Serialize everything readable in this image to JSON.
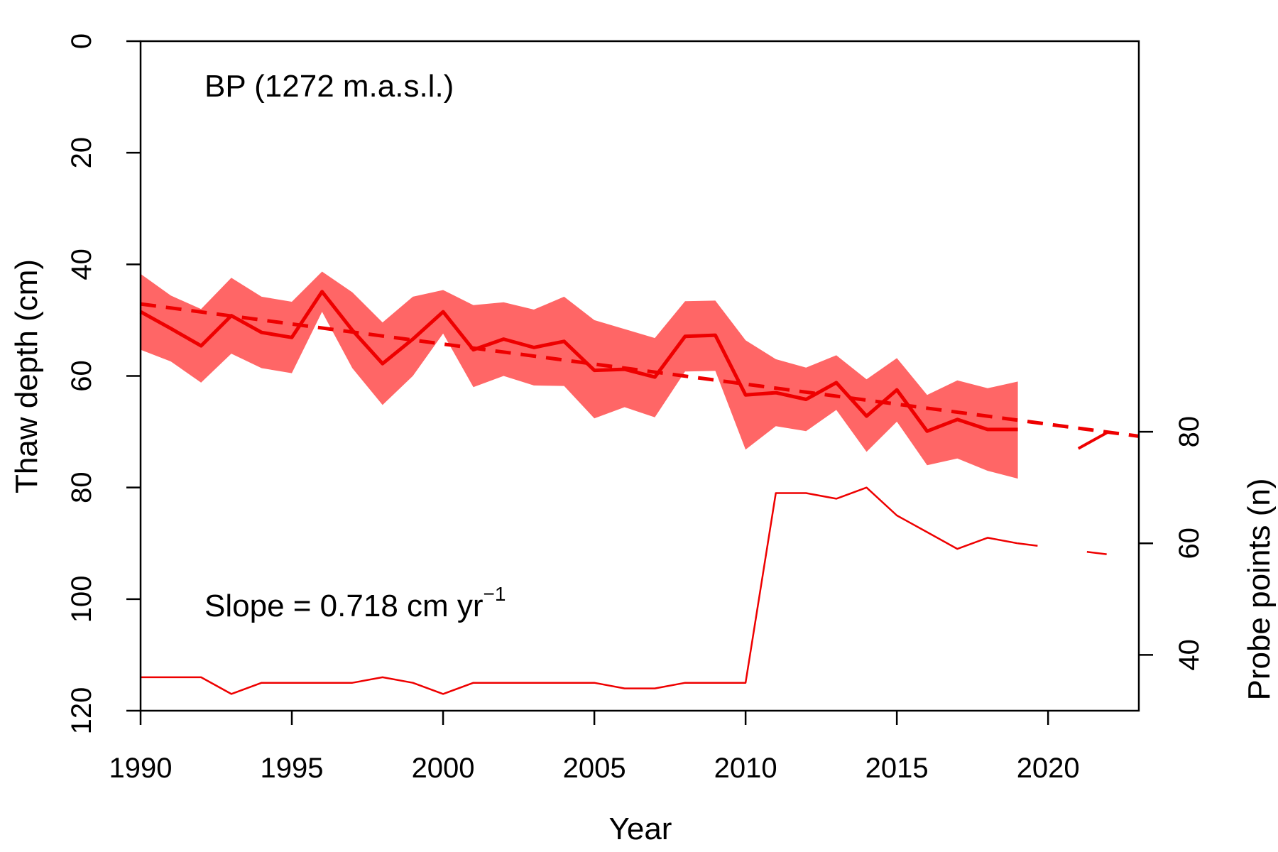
{
  "chart_data": {
    "type": "line",
    "annotation_site": "BP (1272 m.a.s.l.)",
    "annotation_slope": {
      "prefix": "Slope =  0.718 cm yr",
      "superscript": "−1"
    },
    "xlabel": "Year",
    "ylabel_left": "Thaw depth (cm)",
    "ylabel_right": "Probe points (n)",
    "xlim": [
      1990,
      2023
    ],
    "ylim_left": [
      0,
      120
    ],
    "ylim_left_inverted": true,
    "ylim_right": [
      30,
      150
    ],
    "x_ticks": [
      "1990",
      "1995",
      "2000",
      "2005",
      "2010",
      "2015",
      "2020"
    ],
    "y_left_ticks": [
      "0",
      "20",
      "40",
      "60",
      "80",
      "100",
      "120"
    ],
    "y_right_ticks": [
      "40",
      "60",
      "80"
    ],
    "colors": {
      "line": "#ee0000",
      "band": "#ff6666"
    },
    "series": [
      {
        "key": "mean_thaw_depth",
        "axis": "left",
        "style": "solid-thick",
        "x": [
          1990,
          1991,
          1992,
          1993,
          1994,
          1995,
          1996,
          1997,
          1998,
          1999,
          2000,
          2001,
          2002,
          2003,
          2004,
          2005,
          2006,
          2007,
          2008,
          2009,
          2010,
          2011,
          2012,
          2013,
          2014,
          2015,
          2016,
          2017,
          2018,
          2019
        ],
        "y": [
          48.5,
          51.5,
          54.6,
          49.2,
          52.2,
          53.1,
          44.9,
          51.8,
          57.8,
          53.4,
          48.5,
          55.3,
          53.4,
          54.9,
          53.8,
          59.0,
          58.8,
          60.2,
          52.9,
          52.7,
          63.4,
          63.0,
          64.2,
          61.2,
          67.2,
          62.5,
          69.9,
          67.8,
          69.6,
          69.6
        ],
        "lower": [
          41.7,
          45.6,
          48.0,
          42.4,
          45.8,
          46.7,
          41.3,
          45.0,
          50.4,
          45.8,
          44.6,
          47.3,
          46.8,
          48.1,
          45.8,
          50.0,
          51.6,
          53.2,
          46.6,
          46.5,
          53.6,
          57.0,
          58.5,
          56.3,
          60.6,
          56.8,
          63.4,
          60.8,
          62.2,
          61.0
        ],
        "upper": [
          55.3,
          57.4,
          61.2,
          56.0,
          58.6,
          59.5,
          48.5,
          58.6,
          65.2,
          60.0,
          52.4,
          62.0,
          60.0,
          61.7,
          61.8,
          67.6,
          65.6,
          67.4,
          59.2,
          59.1,
          73.2,
          69.0,
          69.9,
          66.1,
          73.6,
          68.2,
          76.0,
          74.8,
          77.0,
          78.4
        ]
      },
      {
        "key": "trend_line",
        "axis": "left",
        "style": "dashed-thick",
        "x": [
          1990,
          2023
        ],
        "y": [
          47.1,
          70.8
        ]
      },
      {
        "key": "probe_points",
        "axis": "right",
        "style": "solid-thin",
        "x": [
          1990,
          1991,
          1992,
          1993,
          1994,
          1995,
          1996,
          1997,
          1998,
          1999,
          2000,
          2001,
          2002,
          2003,
          2004,
          2005,
          2006,
          2007,
          2008,
          2009,
          2010,
          2011,
          2012,
          2013,
          2014,
          2015,
          2016,
          2017,
          2018,
          2019
        ],
        "y": [
          36,
          36,
          36,
          33,
          35,
          35,
          35,
          35,
          36,
          35,
          33,
          35,
          35,
          35,
          35,
          35,
          34,
          34,
          35,
          35,
          35,
          69,
          69,
          68,
          70,
          65,
          62,
          59,
          61,
          60
        ]
      },
      {
        "key": "probe_points_gap",
        "axis": "right",
        "style": "dashed-thin",
        "x": [
          2019,
          2022
        ],
        "y": [
          60,
          58
        ]
      },
      {
        "key": "probe_points_tail",
        "axis": "right",
        "style": "solid-medium",
        "x": [
          2021,
          2022
        ],
        "y": [
          77,
          80
        ]
      }
    ]
  }
}
